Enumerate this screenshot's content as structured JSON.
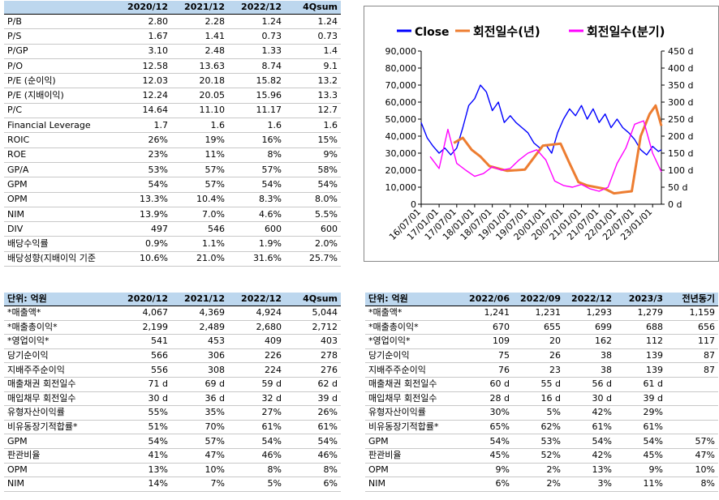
{
  "top_table": {
    "headers": [
      "",
      "2020/12",
      "2021/12",
      "2022/12",
      "4Qsum"
    ],
    "rows": [
      [
        "P/B",
        "2.80",
        "2.28",
        "1.24",
        "1.24"
      ],
      [
        "P/S",
        "1.67",
        "1.41",
        "0.73",
        "0.73"
      ],
      [
        "P/GP",
        "3.10",
        "2.48",
        "1.33",
        "1.4"
      ],
      [
        "P/O",
        "12.58",
        "13.63",
        "8.74",
        "9.1"
      ],
      [
        "P/E (순이익)",
        "12.03",
        "20.18",
        "15.82",
        "13.2"
      ],
      [
        "P/E (지배이익)",
        "12.24",
        "20.05",
        "15.96",
        "13.3"
      ],
      [
        "P/C",
        "14.64",
        "11.10",
        "11.17",
        "12.7"
      ],
      [
        "Financial Leverage",
        "1.7",
        "1.6",
        "1.6",
        "1.6"
      ],
      [
        "ROIC",
        "26%",
        "19%",
        "16%",
        "15%"
      ],
      [
        "ROE",
        "23%",
        "11%",
        "8%",
        "9%"
      ],
      [
        "GP/A",
        "53%",
        "57%",
        "57%",
        "58%"
      ],
      [
        "GPM",
        "54%",
        "57%",
        "54%",
        "54%"
      ],
      [
        "OPM",
        "13.3%",
        "10.4%",
        "8.3%",
        "8.0%"
      ],
      [
        "NIM",
        "13.9%",
        "7.0%",
        "4.6%",
        "5.5%"
      ],
      [
        "DIV",
        "497",
        "546",
        "600",
        "600"
      ],
      [
        "배당수익률",
        "0.9%",
        "1.1%",
        "1.9%",
        "2.0%"
      ],
      [
        "배당성향(지배이익 기준",
        "10.6%",
        "21.0%",
        "31.6%",
        "25.7%"
      ]
    ]
  },
  "annual_table": {
    "headers": [
      "단위: 억원",
      "2020/12",
      "2021/12",
      "2022/12",
      "4Qsum"
    ],
    "rows": [
      [
        "*매출액*",
        "4,067",
        "4,369",
        "4,924",
        "5,044"
      ],
      [
        "*매출총이익*",
        "2,199",
        "2,489",
        "2,680",
        "2,712"
      ],
      [
        "*영업이익*",
        "541",
        "453",
        "409",
        "403"
      ],
      [
        "당기순이익",
        "566",
        "306",
        "226",
        "278"
      ],
      [
        "지배주주순이익",
        "556",
        "308",
        "224",
        "276"
      ],
      [
        "매출채권 회전일수",
        "71 d",
        "69 d",
        "59 d",
        "62 d"
      ],
      [
        "매입채무 회전일수",
        "30 d",
        "36 d",
        "32 d",
        "39 d"
      ],
      [
        "유형자산이익률",
        "55%",
        "35%",
        "27%",
        "26%"
      ],
      [
        "비유동장기적합률*",
        "51%",
        "70%",
        "61%",
        "61%"
      ],
      [
        "GPM",
        "54%",
        "57%",
        "54%",
        "54%"
      ],
      [
        "판관비율",
        "41%",
        "47%",
        "46%",
        "46%"
      ],
      [
        "OPM",
        "13%",
        "10%",
        "8%",
        "8%"
      ],
      [
        "NIM",
        "14%",
        "7%",
        "5%",
        "6%"
      ]
    ]
  },
  "quarter_table": {
    "headers": [
      "단위: 억원",
      "2022/06",
      "2022/09",
      "2022/12",
      "2023/3",
      "전년동기"
    ],
    "rows": [
      [
        "*매출액*",
        "1,241",
        "1,231",
        "1,293",
        "1,279",
        "1,159"
      ],
      [
        "*매출총이익*",
        "670",
        "655",
        "699",
        "688",
        "656"
      ],
      [
        "*영업이익*",
        "109",
        "20",
        "162",
        "112",
        "117"
      ],
      [
        "당기순이익",
        "75",
        "26",
        "38",
        "139",
        "87"
      ],
      [
        "지배주주순이익",
        "76",
        "23",
        "38",
        "139",
        "87"
      ],
      [
        "매출채권 회전일수",
        "60 d",
        "55 d",
        "56 d",
        "61 d",
        ""
      ],
      [
        "매입채무 회전일수",
        "28 d",
        "16 d",
        "30 d",
        "39 d",
        ""
      ],
      [
        "유형자산이익률",
        "30%",
        "5%",
        "42%",
        "29%",
        ""
      ],
      [
        "비유동장기적합률*",
        "65%",
        "62%",
        "61%",
        "61%",
        ""
      ],
      [
        "GPM",
        "54%",
        "53%",
        "54%",
        "54%",
        "57%"
      ],
      [
        "판관비율",
        "45%",
        "52%",
        "42%",
        "45%",
        "47%"
      ],
      [
        "OPM",
        "9%",
        "2%",
        "13%",
        "9%",
        "10%"
      ],
      [
        "NIM",
        "6%",
        "2%",
        "3%",
        "11%",
        "8%"
      ]
    ]
  },
  "chart_data": {
    "type": "line",
    "title": "",
    "legend_position": "top",
    "x_tick_labels": [
      "16/07/01",
      "17/01/01",
      "17/07/01",
      "18/01/01",
      "18/07/01",
      "19/01/01",
      "19/07/01",
      "20/01/01",
      "20/07/01",
      "21/01/01",
      "21/07/01",
      "22/01/01",
      "22/07/01",
      "23/01/01"
    ],
    "x_range": [
      "2016-07-01",
      "2023-04-01"
    ],
    "y_left": {
      "range": [
        0,
        90000
      ],
      "ticks": [
        "0",
        "10,000",
        "20,000",
        "30,000",
        "40,000",
        "50,000",
        "60,000",
        "70,000",
        "80,000",
        "90,000"
      ]
    },
    "y_right": {
      "range": [
        0,
        450
      ],
      "ticks": [
        "0 d",
        "50 d",
        "100 d",
        "150 d",
        "200 d",
        "250 d",
        "300 d",
        "350 d",
        "400 d",
        "450 d"
      ]
    },
    "grid": false,
    "series": [
      {
        "name": "Close",
        "axis": "left",
        "color": "#0000ff",
        "points": [
          [
            "2016-07-01",
            48000
          ],
          [
            "2016-09-01",
            39000
          ],
          [
            "2016-11-01",
            34000
          ],
          [
            "2017-01-01",
            30000
          ],
          [
            "2017-03-01",
            33000
          ],
          [
            "2017-05-01",
            29000
          ],
          [
            "2017-07-01",
            33000
          ],
          [
            "2017-09-01",
            45000
          ],
          [
            "2017-11-01",
            58000
          ],
          [
            "2018-01-01",
            62000
          ],
          [
            "2018-03-01",
            70000
          ],
          [
            "2018-05-01",
            66000
          ],
          [
            "2018-07-01",
            55000
          ],
          [
            "2018-09-01",
            60000
          ],
          [
            "2018-11-01",
            48000
          ],
          [
            "2019-01-01",
            52000
          ],
          [
            "2019-03-01",
            48000
          ],
          [
            "2019-05-01",
            45000
          ],
          [
            "2019-07-01",
            42000
          ],
          [
            "2019-09-01",
            36000
          ],
          [
            "2019-11-01",
            33000
          ],
          [
            "2020-01-01",
            35000
          ],
          [
            "2020-03-01",
            30000
          ],
          [
            "2020-05-01",
            42000
          ],
          [
            "2020-07-01",
            50000
          ],
          [
            "2020-09-01",
            56000
          ],
          [
            "2020-11-01",
            52000
          ],
          [
            "2021-01-01",
            58000
          ],
          [
            "2021-03-01",
            50000
          ],
          [
            "2021-05-01",
            56000
          ],
          [
            "2021-07-01",
            48000
          ],
          [
            "2021-09-01",
            53000
          ],
          [
            "2021-11-01",
            45000
          ],
          [
            "2022-01-01",
            50000
          ],
          [
            "2022-03-01",
            45000
          ],
          [
            "2022-05-01",
            42000
          ],
          [
            "2022-07-01",
            38000
          ],
          [
            "2022-09-01",
            32000
          ],
          [
            "2022-11-01",
            29000
          ],
          [
            "2023-01-01",
            34000
          ],
          [
            "2023-03-01",
            31000
          ],
          [
            "2023-04-01",
            32000
          ]
        ]
      },
      {
        "name": "회전일수(년)",
        "axis": "right",
        "color": "#ed7d31",
        "points": [
          [
            "2017-06-01",
            180
          ],
          [
            "2017-09-01",
            195
          ],
          [
            "2017-12-01",
            160
          ],
          [
            "2018-03-01",
            140
          ],
          [
            "2018-06-01",
            112
          ],
          [
            "2018-12-01",
            98
          ],
          [
            "2019-06-01",
            102
          ],
          [
            "2019-12-01",
            172
          ],
          [
            "2020-06-01",
            178
          ],
          [
            "2020-09-01",
            120
          ],
          [
            "2020-12-01",
            65
          ],
          [
            "2021-03-01",
            55
          ],
          [
            "2021-06-01",
            50
          ],
          [
            "2021-09-01",
            45
          ],
          [
            "2021-12-01",
            32
          ],
          [
            "2022-03-01",
            35
          ],
          [
            "2022-06-01",
            38
          ],
          [
            "2022-09-01",
            200
          ],
          [
            "2022-12-01",
            265
          ],
          [
            "2023-02-01",
            290
          ],
          [
            "2023-04-01",
            230
          ]
        ]
      },
      {
        "name": "회전일수(분기)",
        "axis": "right",
        "color": "#ff00ff",
        "points": [
          [
            "2016-10-01",
            140
          ],
          [
            "2017-01-01",
            105
          ],
          [
            "2017-04-01",
            220
          ],
          [
            "2017-07-01",
            120
          ],
          [
            "2017-10-01",
            100
          ],
          [
            "2018-01-01",
            82
          ],
          [
            "2018-04-01",
            90
          ],
          [
            "2018-07-01",
            110
          ],
          [
            "2018-10-01",
            100
          ],
          [
            "2019-01-01",
            105
          ],
          [
            "2019-04-01",
            130
          ],
          [
            "2019-07-01",
            150
          ],
          [
            "2019-10-01",
            160
          ],
          [
            "2020-01-01",
            130
          ],
          [
            "2020-04-01",
            68
          ],
          [
            "2020-07-01",
            55
          ],
          [
            "2020-10-01",
            50
          ],
          [
            "2021-01-01",
            58
          ],
          [
            "2021-04-01",
            45
          ],
          [
            "2021-07-01",
            38
          ],
          [
            "2021-10-01",
            50
          ],
          [
            "2022-01-01",
            120
          ],
          [
            "2022-04-01",
            165
          ],
          [
            "2022-07-01",
            235
          ],
          [
            "2022-10-01",
            245
          ],
          [
            "2023-01-01",
            150
          ],
          [
            "2023-04-01",
            95
          ]
        ]
      }
    ]
  }
}
